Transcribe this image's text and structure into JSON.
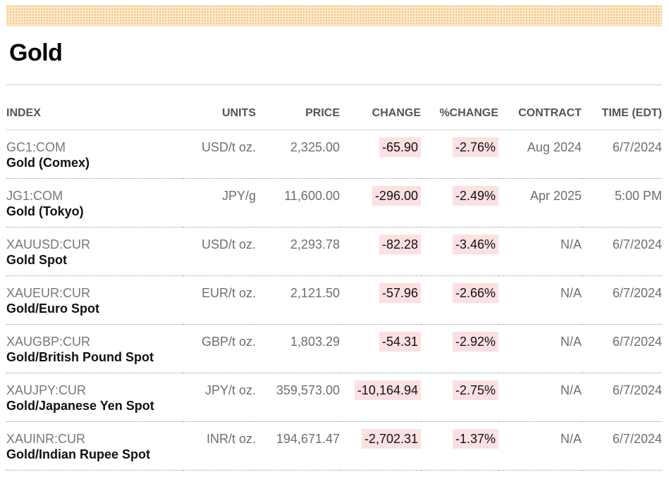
{
  "page": {
    "title": "Gold"
  },
  "table": {
    "headers": {
      "index": "INDEX",
      "units": "UNITS",
      "price": "PRICE",
      "change": "CHANGE",
      "pct_change": "%CHANGE",
      "contract": "CONTRACT",
      "time": "TIME (EDT)"
    },
    "rows": [
      {
        "ticker": "GC1:COM",
        "name": "Gold (Comex)",
        "units": "USD/t oz.",
        "price": "2,325.00",
        "change": "-65.90",
        "pct_change": "-2.76%",
        "contract": "Aug 2024",
        "time": "6/7/2024"
      },
      {
        "ticker": "JG1:COM",
        "name": "Gold (Tokyo)",
        "units": "JPY/g",
        "price": "11,600.00",
        "change": "-296.00",
        "pct_change": "-2.49%",
        "contract": "Apr 2025",
        "time": "5:00 PM"
      },
      {
        "ticker": "XAUUSD:CUR",
        "name": "Gold Spot",
        "units": "USD/t oz.",
        "price": "2,293.78",
        "change": "-82.28",
        "pct_change": "-3.46%",
        "contract": "N/A",
        "time": "6/7/2024"
      },
      {
        "ticker": "XAUEUR:CUR",
        "name": "Gold/Euro Spot",
        "units": "EUR/t oz.",
        "price": "2,121.50",
        "change": "-57.96",
        "pct_change": "-2.66%",
        "contract": "N/A",
        "time": "6/7/2024"
      },
      {
        "ticker": "XAUGBP:CUR",
        "name": "Gold/British Pound Spot",
        "units": "GBP/t oz.",
        "price": "1,803.29",
        "change": "-54.31",
        "pct_change": "-2.92%",
        "contract": "N/A",
        "time": "6/7/2024"
      },
      {
        "ticker": "XAUJPY:CUR",
        "name": "Gold/Japanese Yen Spot",
        "units": "JPY/t oz.",
        "price": "359,573.00",
        "change": "-10,164.94",
        "pct_change": "-2.75%",
        "contract": "N/A",
        "time": "6/7/2024"
      },
      {
        "ticker": "XAUINR:CUR",
        "name": "Gold/Indian Rupee Spot",
        "units": "INR/t oz.",
        "price": "194,671.47",
        "change": "-2,702.31",
        "pct_change": "-1.37%",
        "contract": "N/A",
        "time": "6/7/2024"
      }
    ]
  },
  "colors": {
    "negative_highlight": "#fde0e2",
    "banner": "#fde9c9",
    "banner_dots": "#f0b874"
  }
}
